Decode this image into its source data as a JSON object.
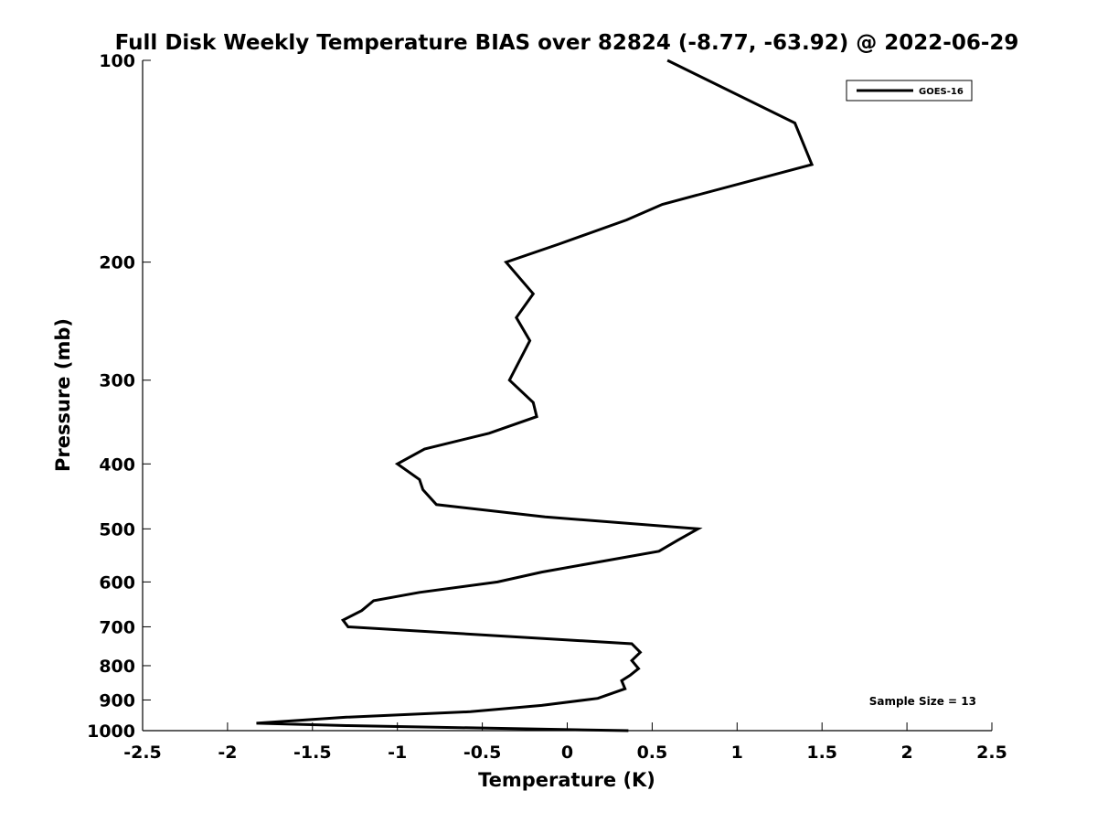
{
  "chart_data": {
    "type": "line",
    "title": "Full Disk Weekly Temperature BIAS over 82824 (-8.77, -63.92) @ 2022-06-29",
    "xlabel": "Temperature (K)",
    "ylabel": "Pressure (mb)",
    "xlim": [
      -2.5,
      2.5
    ],
    "ylim": [
      100,
      1000
    ],
    "y_scale": "log",
    "y_reversed": true,
    "x_ticks": [
      -2.5,
      -2,
      -1.5,
      -1,
      -0.5,
      0,
      0.5,
      1,
      1.5,
      2,
      2.5
    ],
    "x_tick_labels": [
      "-2.5",
      "-2",
      "-1.5",
      "-1",
      "-0.5",
      "0",
      "0.5",
      "1",
      "1.5",
      "2",
      "2.5"
    ],
    "y_ticks": [
      100,
      200,
      300,
      400,
      500,
      600,
      700,
      800,
      900,
      1000
    ],
    "y_tick_labels": [
      "100",
      "200",
      "300",
      "400",
      "500",
      "600",
      "700",
      "800",
      "900",
      "1000"
    ],
    "grid": false,
    "legend_position": "top-right",
    "series": [
      {
        "name": "GOES-16",
        "color": "#000000",
        "points": [
          {
            "x": 0.59,
            "p": 100
          },
          {
            "x": 1.34,
            "p": 124
          },
          {
            "x": 1.44,
            "p": 143
          },
          {
            "x": 0.56,
            "p": 164
          },
          {
            "x": 0.35,
            "p": 173
          },
          {
            "x": -0.05,
            "p": 188
          },
          {
            "x": -0.36,
            "p": 200
          },
          {
            "x": -0.2,
            "p": 223
          },
          {
            "x": -0.3,
            "p": 242
          },
          {
            "x": -0.22,
            "p": 262
          },
          {
            "x": -0.34,
            "p": 300
          },
          {
            "x": -0.2,
            "p": 324
          },
          {
            "x": -0.18,
            "p": 340
          },
          {
            "x": -0.46,
            "p": 360
          },
          {
            "x": -0.84,
            "p": 380
          },
          {
            "x": -1.0,
            "p": 400
          },
          {
            "x": -0.87,
            "p": 422
          },
          {
            "x": -0.85,
            "p": 437
          },
          {
            "x": -0.77,
            "p": 460
          },
          {
            "x": -0.13,
            "p": 480
          },
          {
            "x": 0.77,
            "p": 500
          },
          {
            "x": 0.65,
            "p": 520
          },
          {
            "x": 0.54,
            "p": 540
          },
          {
            "x": -0.15,
            "p": 580
          },
          {
            "x": -0.41,
            "p": 600
          },
          {
            "x": -0.87,
            "p": 622
          },
          {
            "x": -1.14,
            "p": 640
          },
          {
            "x": -1.21,
            "p": 662
          },
          {
            "x": -1.32,
            "p": 684
          },
          {
            "x": -1.29,
            "p": 700
          },
          {
            "x": 0.38,
            "p": 742
          },
          {
            "x": 0.43,
            "p": 764
          },
          {
            "x": 0.38,
            "p": 786
          },
          {
            "x": 0.42,
            "p": 808
          },
          {
            "x": 0.37,
            "p": 827
          },
          {
            "x": 0.32,
            "p": 842
          },
          {
            "x": 0.34,
            "p": 866
          },
          {
            "x": 0.18,
            "p": 895
          },
          {
            "x": -0.15,
            "p": 917
          },
          {
            "x": -0.57,
            "p": 937
          },
          {
            "x": -1.3,
            "p": 955
          },
          {
            "x": -1.83,
            "p": 975
          },
          {
            "x": -1.3,
            "p": 983
          },
          {
            "x": 0.36,
            "p": 1000
          }
        ]
      }
    ],
    "annotation": "Sample Size = 13"
  }
}
